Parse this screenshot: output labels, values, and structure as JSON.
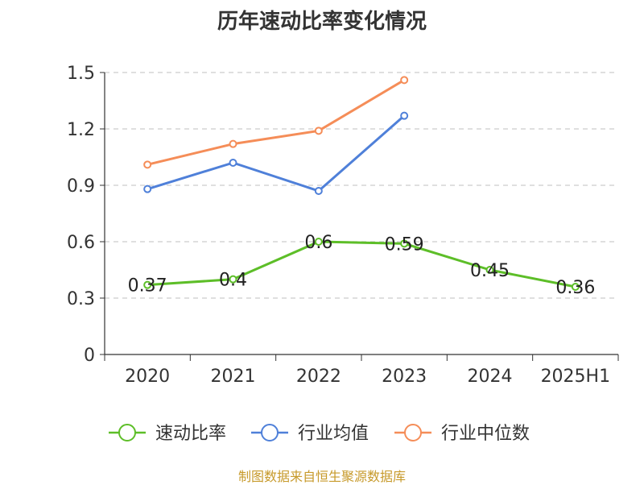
{
  "chart_data": {
    "type": "line",
    "title": "历年速动比率变化情况",
    "categories": [
      "2020",
      "2021",
      "2022",
      "2023",
      "2024",
      "2025H1"
    ],
    "ylim": [
      0,
      1.5
    ],
    "yticks": [
      "0",
      "0.3",
      "0.6",
      "0.9",
      "1.2",
      "1.5"
    ],
    "grid": true,
    "legend_position": "bottom",
    "series": [
      {
        "name": "速动比率",
        "color": "#5dbe28",
        "values": [
          0.37,
          0.4,
          0.6,
          0.59,
          0.45,
          0.36
        ],
        "labels": [
          "0.37",
          "0.4",
          "0.6",
          "0.59",
          "0.45",
          "0.36"
        ]
      },
      {
        "name": "行业均值",
        "color": "#4f80d9",
        "values": [
          0.88,
          1.02,
          0.87,
          1.27,
          null,
          null
        ]
      },
      {
        "name": "行业中位数",
        "color": "#f58d58",
        "values": [
          1.01,
          1.12,
          1.19,
          1.46,
          null,
          null
        ]
      }
    ]
  },
  "source": "制图数据来自恒生聚源数据库"
}
